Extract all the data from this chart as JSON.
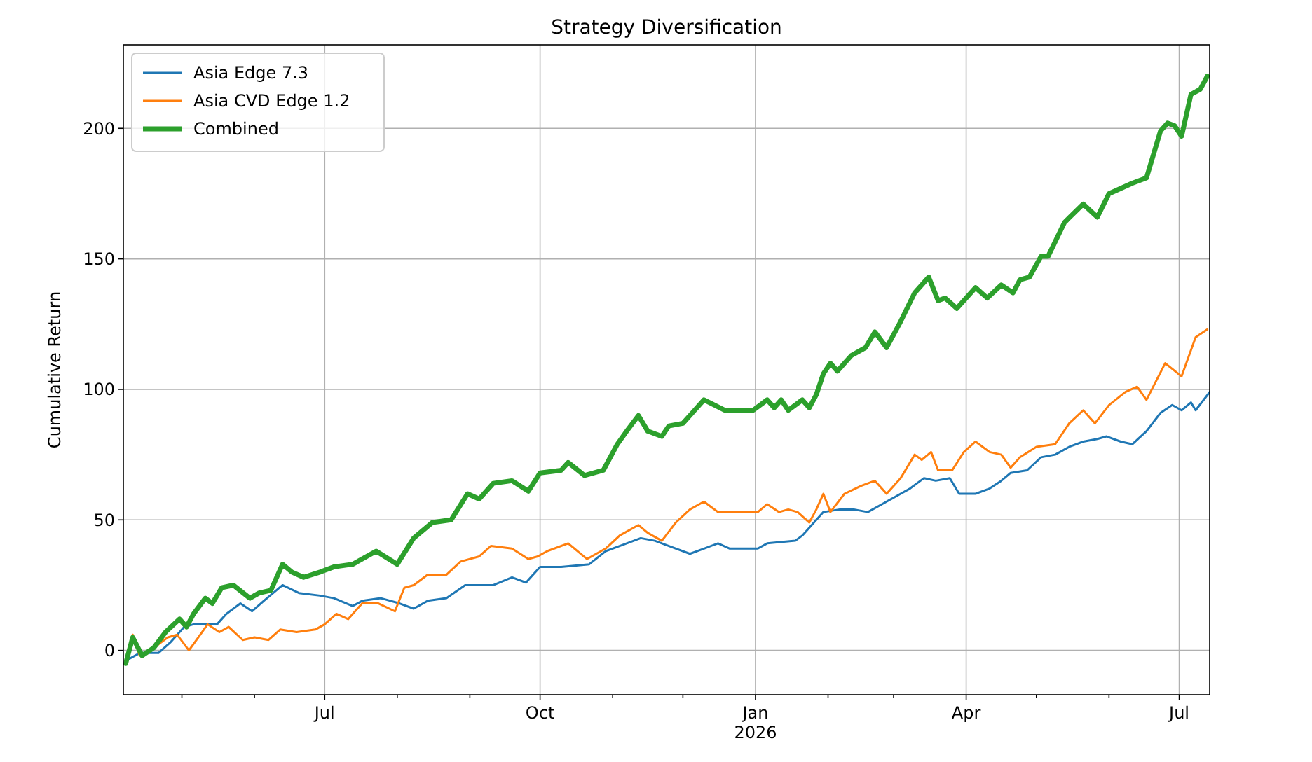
{
  "chart_data": {
    "type": "line",
    "title": "Strategy Diversification",
    "ylabel": "Cumulative Return",
    "xlim": [
      "2025-04-06",
      "2026-07-14"
    ],
    "ylim": [
      -17,
      232
    ],
    "xticks": [
      {
        "value": "2025-05-01",
        "label": null
      },
      {
        "value": "2025-06-01",
        "label": null
      },
      {
        "value": "2025-07-01",
        "label": "Jul"
      },
      {
        "value": "2025-08-01",
        "label": null
      },
      {
        "value": "2025-09-01",
        "label": null
      },
      {
        "value": "2025-10-01",
        "label": "Oct"
      },
      {
        "value": "2025-11-01",
        "label": null
      },
      {
        "value": "2025-12-01",
        "label": null
      },
      {
        "value": "2026-01-01",
        "label": "Jan\n2026"
      },
      {
        "value": "2026-02-01",
        "label": null
      },
      {
        "value": "2026-03-01",
        "label": null
      },
      {
        "value": "2026-04-01",
        "label": "Apr"
      },
      {
        "value": "2026-05-01",
        "label": null
      },
      {
        "value": "2026-06-01",
        "label": null
      },
      {
        "value": "2026-07-01",
        "label": "Jul"
      }
    ],
    "yticks": [
      0,
      50,
      100,
      150,
      200
    ],
    "grid": true,
    "legend": "top left",
    "series": [
      {
        "name": "Asia Edge 7.3",
        "color": "#1f77b4",
        "x": [
          "2025-04-07",
          "2025-04-13",
          "2025-04-21",
          "2025-04-26",
          "2025-05-02",
          "2025-05-06",
          "2025-05-16",
          "2025-05-20",
          "2025-05-26",
          "2025-05-31",
          "2025-06-05",
          "2025-06-13",
          "2025-06-20",
          "2025-06-29",
          "2025-07-05",
          "2025-07-13",
          "2025-07-17",
          "2025-07-25",
          "2025-08-02",
          "2025-08-08",
          "2025-08-14",
          "2025-08-22",
          "2025-08-30",
          "2025-09-11",
          "2025-09-19",
          "2025-09-25",
          "2025-10-01",
          "2025-10-10",
          "2025-10-22",
          "2025-10-29",
          "2025-11-04",
          "2025-11-13",
          "2025-11-19",
          "2025-11-25",
          "2025-12-04",
          "2025-12-10",
          "2025-12-16",
          "2025-12-21",
          "2026-01-02",
          "2026-01-06",
          "2026-01-18",
          "2026-01-21",
          "2026-01-24",
          "2026-01-30",
          "2026-02-06",
          "2026-02-12",
          "2026-02-18",
          "2026-02-24",
          "2026-03-02",
          "2026-03-08",
          "2026-03-14",
          "2026-03-19",
          "2026-03-25",
          "2026-03-29",
          "2026-04-05",
          "2026-04-11",
          "2026-04-16",
          "2026-04-20",
          "2026-04-27",
          "2026-05-03",
          "2026-05-09",
          "2026-05-15",
          "2026-05-21",
          "2026-05-27",
          "2026-05-31",
          "2026-06-06",
          "2026-06-11",
          "2026-06-17",
          "2026-06-23",
          "2026-06-28",
          "2026-07-02",
          "2026-07-06",
          "2026-07-08",
          "2026-07-14"
        ],
        "values": [
          -4,
          -1,
          -1,
          3,
          9,
          10,
          10,
          14,
          18,
          15,
          19,
          25,
          22,
          21,
          20,
          17,
          19,
          20,
          18,
          16,
          19,
          20,
          25,
          25,
          28,
          26,
          32,
          32,
          33,
          38,
          40,
          43,
          42,
          40,
          37,
          39,
          41,
          39,
          39,
          41,
          42,
          44,
          47,
          53,
          54,
          54,
          53,
          56,
          59,
          62,
          66,
          65,
          66,
          60,
          60,
          62,
          65,
          68,
          69,
          74,
          75,
          78,
          80,
          81,
          82,
          80,
          79,
          84,
          91,
          94,
          92,
          95,
          92,
          99
        ]
      },
      {
        "name": "Asia CVD Edge 1.2",
        "color": "#ff7f0e",
        "x": [
          "2025-04-10",
          "2025-04-13",
          "2025-04-19",
          "2025-04-25",
          "2025-04-29",
          "2025-05-04",
          "2025-05-08",
          "2025-05-12",
          "2025-05-17",
          "2025-05-21",
          "2025-05-27",
          "2025-06-01",
          "2025-06-07",
          "2025-06-12",
          "2025-06-19",
          "2025-06-27",
          "2025-07-01",
          "2025-07-06",
          "2025-07-11",
          "2025-07-17",
          "2025-07-24",
          "2025-07-31",
          "2025-08-04",
          "2025-08-08",
          "2025-08-14",
          "2025-08-22",
          "2025-08-28",
          "2025-09-05",
          "2025-09-10",
          "2025-09-19",
          "2025-09-26",
          "2025-09-30",
          "2025-10-04",
          "2025-10-13",
          "2025-10-21",
          "2025-10-29",
          "2025-11-04",
          "2025-11-12",
          "2025-11-16",
          "2025-11-22",
          "2025-11-28",
          "2025-12-04",
          "2025-12-10",
          "2025-12-16",
          "2026-01-02",
          "2026-01-06",
          "2026-01-11",
          "2026-01-15",
          "2026-01-19",
          "2026-01-24",
          "2026-01-27",
          "2026-01-30",
          "2026-02-02",
          "2026-02-08",
          "2026-02-15",
          "2026-02-21",
          "2026-02-26",
          "2026-03-04",
          "2026-03-10",
          "2026-03-13",
          "2026-03-17",
          "2026-03-20",
          "2026-03-26",
          "2026-03-31",
          "2026-04-05",
          "2026-04-11",
          "2026-04-16",
          "2026-04-20",
          "2026-04-24",
          "2026-05-01",
          "2026-05-09",
          "2026-05-15",
          "2026-05-21",
          "2026-05-26",
          "2026-06-01",
          "2026-06-08",
          "2026-06-13",
          "2026-06-17",
          "2026-06-25",
          "2026-07-02",
          "2026-07-08",
          "2026-07-13"
        ],
        "values": [
          6,
          -2,
          1,
          5,
          6,
          0,
          5,
          10,
          7,
          9,
          4,
          5,
          4,
          8,
          7,
          8,
          10,
          14,
          12,
          18,
          18,
          15,
          24,
          25,
          29,
          29,
          34,
          36,
          40,
          39,
          35,
          36,
          38,
          41,
          35,
          39,
          44,
          48,
          45,
          42,
          49,
          54,
          57,
          53,
          53,
          56,
          53,
          54,
          53,
          49,
          54,
          60,
          53,
          60,
          63,
          65,
          60,
          66,
          75,
          73,
          76,
          69,
          69,
          76,
          80,
          76,
          75,
          70,
          74,
          78,
          79,
          87,
          92,
          87,
          94,
          99,
          101,
          96,
          110,
          105,
          120,
          123
        ]
      },
      {
        "name": "Combined",
        "color": "#2ca02c",
        "x": [
          "2025-04-07",
          "2025-04-10",
          "2025-04-14",
          "2025-04-19",
          "2025-04-24",
          "2025-04-30",
          "2025-05-03",
          "2025-05-06",
          "2025-05-11",
          "2025-05-14",
          "2025-05-18",
          "2025-05-23",
          "2025-05-30",
          "2025-06-03",
          "2025-06-08",
          "2025-06-13",
          "2025-06-17",
          "2025-06-22",
          "2025-06-29",
          "2025-07-05",
          "2025-07-13",
          "2025-07-23",
          "2025-08-01",
          "2025-08-08",
          "2025-08-16",
          "2025-08-24",
          "2025-08-31",
          "2025-09-05",
          "2025-09-11",
          "2025-09-19",
          "2025-09-26",
          "2025-10-01",
          "2025-10-10",
          "2025-10-13",
          "2025-10-20",
          "2025-10-28",
          "2025-11-03",
          "2025-11-07",
          "2025-11-12",
          "2025-11-16",
          "2025-11-22",
          "2025-11-25",
          "2025-12-01",
          "2025-12-06",
          "2025-12-10",
          "2025-12-19",
          "2025-12-31",
          "2026-01-06",
          "2026-01-09",
          "2026-01-12",
          "2026-01-15",
          "2026-01-21",
          "2026-01-24",
          "2026-01-27",
          "2026-01-30",
          "2026-02-02",
          "2026-02-05",
          "2026-02-11",
          "2026-02-17",
          "2026-02-21",
          "2026-02-26",
          "2026-03-04",
          "2026-03-10",
          "2026-03-16",
          "2026-03-20",
          "2026-03-23",
          "2026-03-28",
          "2026-04-05",
          "2026-04-10",
          "2026-04-16",
          "2026-04-21",
          "2026-04-24",
          "2026-04-28",
          "2026-05-03",
          "2026-05-06",
          "2026-05-13",
          "2026-05-21",
          "2026-05-27",
          "2026-06-01",
          "2026-06-06",
          "2026-06-11",
          "2026-06-17",
          "2026-06-23",
          "2026-06-26",
          "2026-06-29",
          "2026-07-02",
          "2026-07-06",
          "2026-07-10",
          "2026-07-13"
        ],
        "values": [
          -5,
          5,
          -2,
          1,
          7,
          12,
          9,
          14,
          20,
          18,
          24,
          25,
          20,
          22,
          23,
          33,
          30,
          28,
          30,
          32,
          33,
          38,
          33,
          43,
          49,
          50,
          60,
          58,
          64,
          65,
          61,
          68,
          69,
          72,
          67,
          69,
          79,
          84,
          90,
          84,
          82,
          86,
          87,
          92,
          96,
          92,
          92,
          96,
          93,
          96,
          92,
          96,
          93,
          98,
          106,
          110,
          107,
          113,
          116,
          122,
          116,
          126,
          137,
          143,
          134,
          135,
          131,
          139,
          135,
          140,
          137,
          142,
          143,
          151,
          151,
          164,
          171,
          166,
          175,
          177,
          179,
          181,
          199,
          202,
          201,
          197,
          213,
          215,
          220
        ]
      }
    ]
  }
}
